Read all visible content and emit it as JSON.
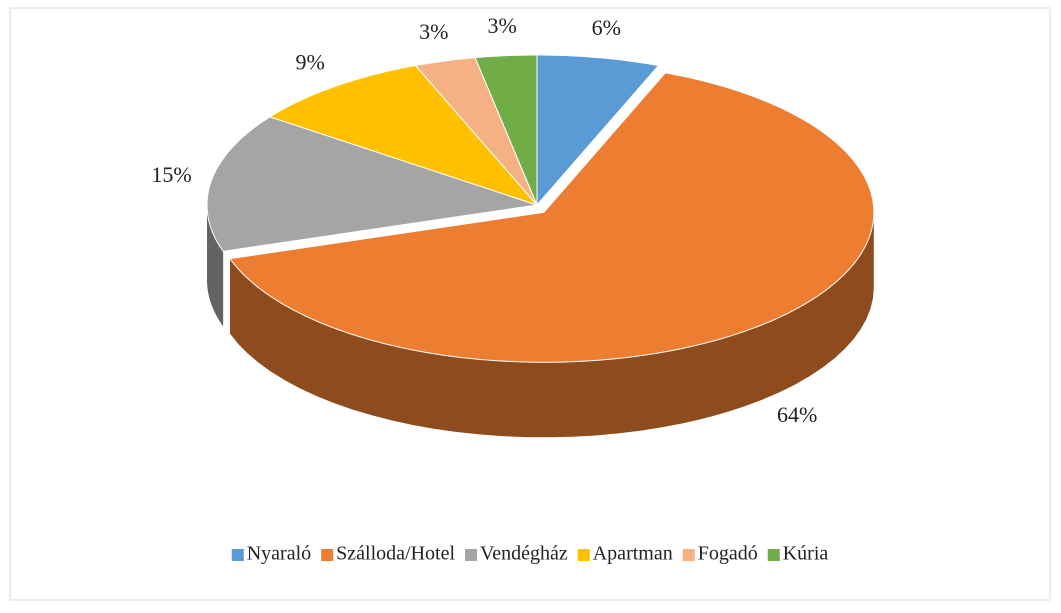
{
  "chart_data": {
    "type": "pie",
    "categories": [
      "Nyaraló",
      "Szálloda/Hotel",
      "Vendégház",
      "Apartman",
      "Fogadó",
      "Kúria"
    ],
    "values": [
      6,
      64,
      15,
      9,
      3,
      3
    ],
    "value_labels": [
      "6%",
      "64%",
      "15%",
      "9%",
      "3%",
      "3%"
    ],
    "colors": [
      "#5b9bd5",
      "#ed7d31",
      "#a5a5a5",
      "#ffc000",
      "#f4b183",
      "#70ad47"
    ],
    "legend": "bottom"
  }
}
